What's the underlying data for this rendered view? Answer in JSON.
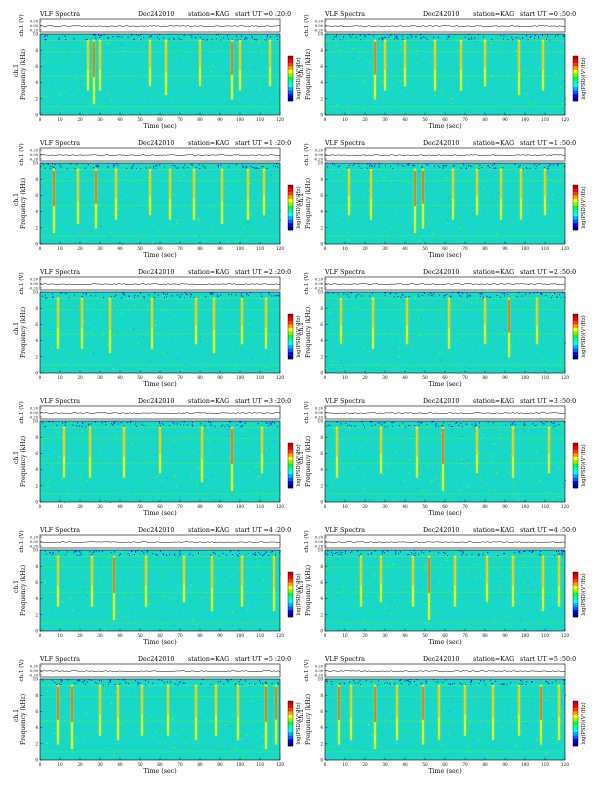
{
  "page": {
    "colormap": [
      "#000080",
      "#0000ff",
      "#0060ff",
      "#00b0ff",
      "#00ffff",
      "#00ffb0",
      "#00ff40",
      "#80ff00",
      "#ffff00",
      "#ffa000",
      "#ff4000",
      "#ff0000",
      "#c00000"
    ],
    "background_color": "#19d8c8",
    "trace_color": "#000000"
  },
  "chart_data": [
    {
      "type": "heatmap",
      "header": {
        "title": "VLF Spectra",
        "date": "Dec242010",
        "station": "station=KAG",
        "start": "start  UT =0 :20:0"
      },
      "top_ylabel": "ch.1 (V)",
      "top_ticks": [
        "0.20",
        "0.00",
        "-0.20"
      ],
      "ylabel": "Frequency  (kHz)",
      "ylabel_prefix": "ch.1",
      "yticks": [
        "0",
        "2",
        "4",
        "6",
        "8",
        "10"
      ],
      "xlabel": "Time  (sec)",
      "xticks": [
        "0",
        "10",
        "20",
        "30",
        "40",
        "50",
        "60",
        "70",
        "80",
        "90",
        "100",
        "110",
        "120"
      ],
      "xlim": [
        0,
        120
      ],
      "ylim": [
        0,
        10
      ],
      "colorbar_label": "log(PSD)(V²/Hz)",
      "bursts": [
        [
          24,
          0.6
        ],
        [
          27,
          0.9
        ],
        [
          30,
          0.6
        ],
        [
          55,
          0.5
        ],
        [
          63,
          0.7
        ],
        [
          80,
          0.5
        ],
        [
          96,
          0.8
        ],
        [
          100,
          0.6
        ],
        [
          115,
          0.5
        ]
      ]
    },
    {
      "type": "heatmap",
      "header": {
        "title": "VLF Spectra",
        "date": "Dec242010",
        "station": "station=KAG",
        "start": "start  UT =0 :50:0"
      },
      "top_ylabel": "ch.1 (V)",
      "top_ticks": [
        "0.20",
        "0.00",
        "-0.20"
      ],
      "ylabel": "Frequency  (kHz)",
      "ylabel_prefix": "ch.1",
      "yticks": [
        "0",
        "2",
        "4",
        "6",
        "8",
        "10"
      ],
      "xlabel": "Time  (sec)",
      "xticks": [
        "0",
        "10",
        "20",
        "30",
        "40",
        "50",
        "60",
        "70",
        "80",
        "90",
        "100",
        "110",
        "120"
      ],
      "xlim": [
        0,
        120
      ],
      "ylim": [
        0,
        10
      ],
      "colorbar_label": "log(PSD)(V²/Hz)",
      "bursts": [
        [
          25,
          0.8
        ],
        [
          30,
          0.6
        ],
        [
          40,
          0.5
        ],
        [
          55,
          0.6
        ],
        [
          68,
          0.6
        ],
        [
          80,
          0.5
        ],
        [
          97,
          0.7
        ],
        [
          109,
          0.6
        ]
      ]
    },
    {
      "type": "heatmap",
      "header": {
        "title": "VLF Spectra",
        "date": "Dec242010",
        "station": "station=KAG",
        "start": "start  UT =1 :20:0"
      },
      "top_ylabel": "ch.1 (V)",
      "top_ticks": [
        "0.20",
        "0.00",
        "-0.20"
      ],
      "ylabel": "Frequency  (kHz)",
      "ylabel_prefix": "ch.1",
      "yticks": [
        "0",
        "2",
        "4",
        "6",
        "8",
        "10"
      ],
      "xlabel": "Time  (sec)",
      "xticks": [
        "0",
        "10",
        "20",
        "30",
        "40",
        "50",
        "60",
        "70",
        "80",
        "90",
        "100",
        "110",
        "120"
      ],
      "xlim": [
        0,
        120
      ],
      "ylim": [
        0,
        10
      ],
      "colorbar_label": "log(PSD)(V²/Hz)",
      "bursts": [
        [
          7,
          0.9
        ],
        [
          19,
          0.7
        ],
        [
          28,
          0.8
        ],
        [
          38,
          0.6
        ],
        [
          55,
          0.5
        ],
        [
          65,
          0.6
        ],
        [
          77,
          0.6
        ],
        [
          91,
          0.7
        ],
        [
          104,
          0.6
        ],
        [
          112,
          0.5
        ]
      ]
    },
    {
      "type": "heatmap",
      "header": {
        "title": "VLF Spectra",
        "date": "Dec242010",
        "station": "station=KAG",
        "start": "start  UT =1 :50:0"
      },
      "top_ylabel": "ch.1 (V)",
      "top_ticks": [
        "0.20",
        "0.00",
        "-0.20"
      ],
      "ylabel": "Frequency  (kHz)",
      "ylabel_prefix": "ch.1",
      "yticks": [
        "0",
        "2",
        "4",
        "6",
        "8",
        "10"
      ],
      "xlabel": "Time  (sec)",
      "xticks": [
        "0",
        "10",
        "20",
        "30",
        "40",
        "50",
        "60",
        "70",
        "80",
        "90",
        "100",
        "110",
        "120"
      ],
      "xlim": [
        0,
        120
      ],
      "ylim": [
        0,
        10
      ],
      "colorbar_label": "log(PSD)(V²/Hz)",
      "bursts": [
        [
          12,
          0.5
        ],
        [
          23,
          0.6
        ],
        [
          45,
          0.9
        ],
        [
          49,
          0.8
        ],
        [
          64,
          0.6
        ],
        [
          76,
          0.5
        ],
        [
          88,
          0.6
        ],
        [
          98,
          0.6
        ],
        [
          110,
          0.5
        ]
      ]
    },
    {
      "type": "heatmap",
      "header": {
        "title": "VLF Spectra",
        "date": "Dec242010",
        "station": "station=KAG",
        "start": "start  UT =2 :20:0"
      },
      "top_ylabel": "ch.1 (V)",
      "top_ticks": [
        "0.20",
        "0.00",
        "-0.20"
      ],
      "ylabel": "Frequency  (kHz)",
      "ylabel_prefix": "ch.1",
      "yticks": [
        "0",
        "2",
        "4",
        "6",
        "8",
        "10"
      ],
      "xlabel": "Time  (sec)",
      "xticks": [
        "0",
        "10",
        "20",
        "30",
        "40",
        "50",
        "60",
        "70",
        "80",
        "90",
        "100",
        "110",
        "120"
      ],
      "xlim": [
        0,
        120
      ],
      "ylim": [
        0,
        10
      ],
      "colorbar_label": "log(PSD)(V²/Hz)",
      "bursts": [
        [
          9,
          0.6
        ],
        [
          21,
          0.6
        ],
        [
          35,
          0.7
        ],
        [
          56,
          0.6
        ],
        [
          78,
          0.5
        ],
        [
          87,
          0.7
        ],
        [
          101,
          0.5
        ],
        [
          113,
          0.6
        ]
      ]
    },
    {
      "type": "heatmap",
      "header": {
        "title": "VLF Spectra",
        "date": "Dec242010",
        "station": "station=KAG",
        "start": "start  UT =2 :50:0"
      },
      "top_ylabel": "ch.1 (V)",
      "top_ticks": [
        "0.20",
        "0.00",
        "-0.20"
      ],
      "ylabel": "Frequency  (kHz)",
      "ylabel_prefix": "ch.1",
      "yticks": [
        "0",
        "2",
        "4",
        "6",
        "8",
        "10"
      ],
      "xlabel": "Time  (sec)",
      "xticks": [
        "0",
        "10",
        "20",
        "30",
        "40",
        "50",
        "60",
        "70",
        "80",
        "90",
        "100",
        "110",
        "120"
      ],
      "xlim": [
        0,
        120
      ],
      "ylim": [
        0,
        10
      ],
      "colorbar_label": "log(PSD)(V²/Hz)",
      "bursts": [
        [
          8,
          0.5
        ],
        [
          24,
          0.6
        ],
        [
          41,
          0.5
        ],
        [
          62,
          0.6
        ],
        [
          80,
          0.5
        ],
        [
          92,
          0.8
        ],
        [
          106,
          0.5
        ]
      ]
    },
    {
      "type": "heatmap",
      "header": {
        "title": "VLF Spectra",
        "date": "Dec242010",
        "station": "station=KAG",
        "start": "start  UT =3 :20:0"
      },
      "top_ylabel": "ch.1 (V)",
      "top_ticks": [
        "0.20",
        "0.00",
        "-0.20"
      ],
      "ylabel": "Frequency  (kHz)",
      "ylabel_prefix": "ch.1",
      "yticks": [
        "0",
        "2",
        "4",
        "6",
        "8",
        "10"
      ],
      "xlabel": "Time  (sec)",
      "xticks": [
        "0",
        "10",
        "20",
        "30",
        "40",
        "50",
        "60",
        "70",
        "80",
        "90",
        "100",
        "110",
        "120"
      ],
      "xlim": [
        0,
        120
      ],
      "ylim": [
        0,
        10
      ],
      "colorbar_label": "log(PSD)(V²/Hz)",
      "bursts": [
        [
          12,
          0.6
        ],
        [
          25,
          0.6
        ],
        [
          42,
          0.6
        ],
        [
          60,
          0.5
        ],
        [
          81,
          0.7
        ],
        [
          96,
          0.9
        ],
        [
          111,
          0.5
        ]
      ]
    },
    {
      "type": "heatmap",
      "header": {
        "title": "VLF Spectra",
        "date": "Dec242010",
        "station": "station=KAG",
        "start": "start  UT =3 :50:0"
      },
      "top_ylabel": "ch.1 (V)",
      "top_ticks": [
        "0.20",
        "0.00",
        "-0.20"
      ],
      "ylabel": "Frequency  (kHz)",
      "ylabel_prefix": "ch.1",
      "yticks": [
        "0",
        "2",
        "4",
        "6",
        "8",
        "10"
      ],
      "xlabel": "Time  (sec)",
      "xticks": [
        "0",
        "10",
        "20",
        "30",
        "40",
        "50",
        "60",
        "70",
        "80",
        "90",
        "100",
        "110",
        "120"
      ],
      "xlim": [
        0,
        120
      ],
      "ylim": [
        0,
        10
      ],
      "colorbar_label": "log(PSD)(V²/Hz)",
      "bursts": [
        [
          6,
          0.6
        ],
        [
          28,
          0.5
        ],
        [
          46,
          0.6
        ],
        [
          59,
          0.9
        ],
        [
          76,
          0.5
        ],
        [
          94,
          0.6
        ],
        [
          112,
          0.5
        ]
      ]
    },
    {
      "type": "heatmap",
      "header": {
        "title": "VLF Spectra",
        "date": "Dec242010",
        "station": "station=KAG",
        "start": "start  UT =4 :20:0"
      },
      "top_ylabel": "ch.1 (V)",
      "top_ticks": [
        "0.20",
        "0.00",
        "-0.20"
      ],
      "ylabel": "Frequency  (kHz)",
      "ylabel_prefix": "ch.1",
      "yticks": [
        "0",
        "2",
        "4",
        "6",
        "8",
        "10"
      ],
      "xlabel": "Time  (sec)",
      "xticks": [
        "0",
        "10",
        "20",
        "30",
        "40",
        "50",
        "60",
        "70",
        "80",
        "90",
        "100",
        "110",
        "120"
      ],
      "xlim": [
        0,
        120
      ],
      "ylim": [
        0,
        10
      ],
      "colorbar_label": "log(PSD)(V²/Hz)",
      "bursts": [
        [
          9,
          0.6
        ],
        [
          26,
          0.6
        ],
        [
          37,
          0.9
        ],
        [
          53,
          0.6
        ],
        [
          72,
          0.5
        ],
        [
          86,
          0.7
        ],
        [
          101,
          0.6
        ],
        [
          117,
          0.7
        ]
      ]
    },
    {
      "type": "heatmap",
      "header": {
        "title": "VLF Spectra",
        "date": "Dec242010",
        "station": "station=KAG",
        "start": "start  UT =4 :50:0"
      },
      "top_ylabel": "ch.1 (V)",
      "top_ticks": [
        "0.20",
        "0.00",
        "-0.20"
      ],
      "ylabel": "Frequency  (kHz)",
      "ylabel_prefix": "ch.1",
      "yticks": [
        "0",
        "2",
        "4",
        "6",
        "8",
        "10"
      ],
      "xlabel": "Time  (sec)",
      "xticks": [
        "0",
        "10",
        "20",
        "30",
        "40",
        "50",
        "60",
        "70",
        "80",
        "90",
        "100",
        "110",
        "120"
      ],
      "xlim": [
        0,
        120
      ],
      "ylim": [
        0,
        10
      ],
      "colorbar_label": "log(PSD)(V²/Hz)",
      "bursts": [
        [
          18,
          0.6
        ],
        [
          28,
          0.5
        ],
        [
          44,
          0.6
        ],
        [
          52,
          0.9
        ],
        [
          65,
          0.6
        ],
        [
          81,
          0.5
        ],
        [
          94,
          0.6
        ],
        [
          109,
          0.7
        ],
        [
          117,
          0.6
        ]
      ]
    },
    {
      "type": "heatmap",
      "header": {
        "title": "VLF Spectra",
        "date": "Dec242010",
        "station": "station=KAG",
        "start": "start  UT =5 :20:0"
      },
      "top_ylabel": "ch.1 (V)",
      "top_ticks": [
        "0.20",
        "0.00",
        "-0.20"
      ],
      "ylabel": "Frequency  (kHz)",
      "ylabel_prefix": "ch.1",
      "yticks": [
        "0",
        "2",
        "4",
        "6",
        "8",
        "10"
      ],
      "xlabel": "Time  (sec)",
      "xticks": [
        "0",
        "10",
        "20",
        "30",
        "40",
        "50",
        "60",
        "70",
        "80",
        "90",
        "100",
        "110",
        "120"
      ],
      "xlim": [
        0,
        120
      ],
      "ylim": [
        0,
        10
      ],
      "colorbar_label": "log(PSD)(V²/Hz)",
      "bursts": [
        [
          9,
          0.8
        ],
        [
          16,
          0.9
        ],
        [
          30,
          0.6
        ],
        [
          39,
          0.7
        ],
        [
          51,
          0.6
        ],
        [
          64,
          0.6
        ],
        [
          78,
          0.7
        ],
        [
          88,
          0.6
        ],
        [
          99,
          0.7
        ],
        [
          113,
          0.9
        ],
        [
          118,
          0.8
        ]
      ]
    },
    {
      "type": "heatmap",
      "header": {
        "title": "VLF Spectra",
        "date": "Dec242010",
        "station": "station=KAG",
        "start": "start  UT =5 :50:0"
      },
      "top_ylabel": "ch.1 (V)",
      "top_ticks": [
        "0.20",
        "0.00",
        "-0.20"
      ],
      "ylabel": "Frequency  (kHz)",
      "ylabel_prefix": "ch.1",
      "yticks": [
        "0",
        "2",
        "4",
        "6",
        "8",
        "10"
      ],
      "xlabel": "Time  (sec)",
      "xticks": [
        "0",
        "10",
        "20",
        "30",
        "40",
        "50",
        "60",
        "70",
        "80",
        "90",
        "100",
        "110",
        "120"
      ],
      "xlim": [
        0,
        120
      ],
      "ylim": [
        0,
        10
      ],
      "colorbar_label": "log(PSD)(V²/Hz)",
      "bursts": [
        [
          7,
          0.8
        ],
        [
          13,
          0.7
        ],
        [
          25,
          0.9
        ],
        [
          36,
          0.7
        ],
        [
          49,
          0.8
        ],
        [
          57,
          0.7
        ],
        [
          70,
          0.6
        ],
        [
          84,
          0.7
        ],
        [
          97,
          0.6
        ],
        [
          108,
          0.8
        ],
        [
          117,
          0.7
        ]
      ]
    }
  ]
}
